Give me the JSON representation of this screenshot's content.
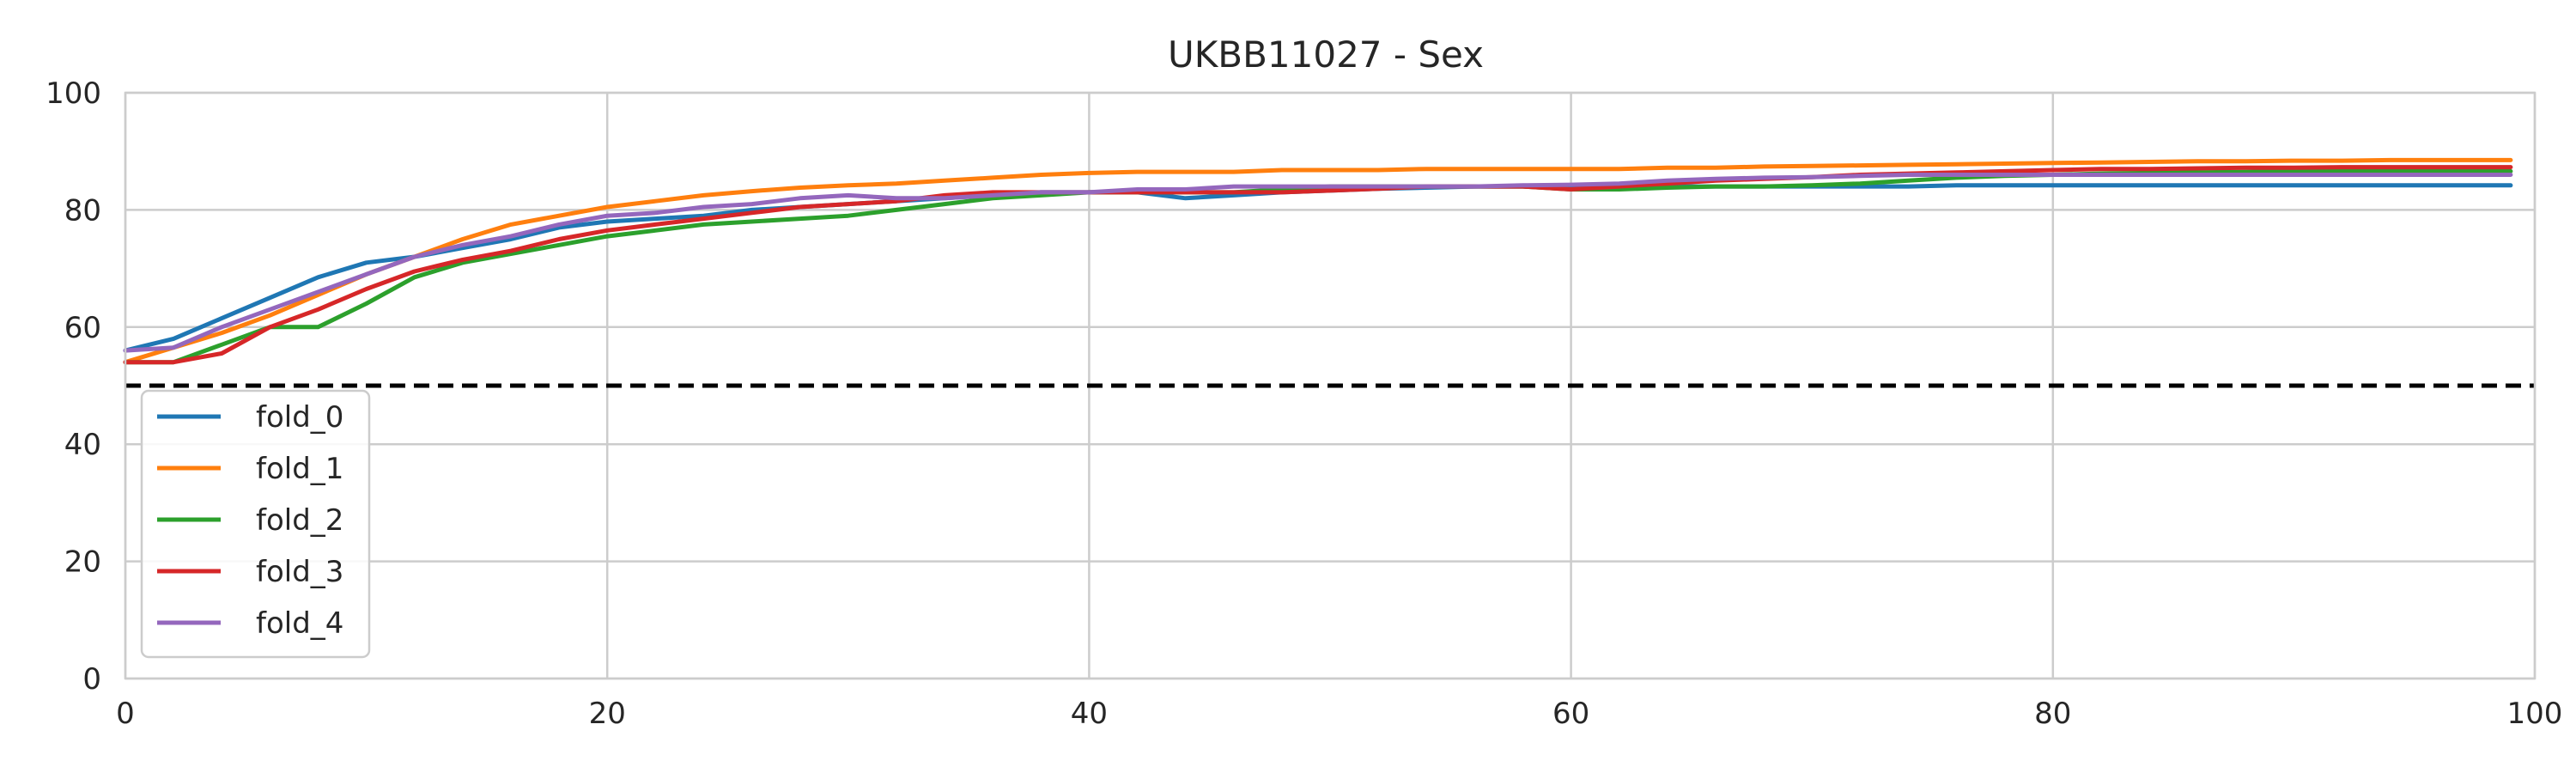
{
  "chart_data": {
    "type": "line",
    "title": "UKBB11027 - Sex",
    "xlabel": "",
    "ylabel": "",
    "xlim": [
      0,
      100
    ],
    "ylim": [
      0,
      100
    ],
    "x_ticks": [
      0,
      20,
      40,
      60,
      80,
      100
    ],
    "y_ticks": [
      0,
      20,
      40,
      60,
      80,
      100
    ],
    "grid": true,
    "legend_position": "lower-left",
    "reference_line": {
      "y": 50,
      "style": "dashed",
      "color": "#000000"
    },
    "x": [
      0,
      2,
      4,
      6,
      8,
      10,
      12,
      14,
      16,
      18,
      20,
      22,
      24,
      26,
      28,
      30,
      32,
      34,
      36,
      38,
      40,
      42,
      44,
      46,
      48,
      50,
      52,
      54,
      56,
      58,
      60,
      62,
      64,
      66,
      68,
      70,
      72,
      74,
      76,
      78,
      80,
      82,
      84,
      86,
      88,
      90,
      92,
      94,
      96,
      98,
      99
    ],
    "series": [
      {
        "name": "fold_0",
        "color": "#1f77b4",
        "values": [
          56,
          58,
          61.5,
          65,
          68.5,
          71,
          72,
          73.5,
          75,
          77,
          78,
          78.5,
          79,
          80,
          80.5,
          81,
          81.5,
          82,
          82.5,
          83,
          83,
          83,
          82,
          82.5,
          83,
          83.3,
          83.6,
          83.8,
          84,
          84,
          84,
          84,
          84,
          84,
          84,
          84,
          84,
          84,
          84.2,
          84.2,
          84.2,
          84.2,
          84.2,
          84.2,
          84.2,
          84.2,
          84.2,
          84.2,
          84.2,
          84.2,
          84.2
        ]
      },
      {
        "name": "fold_1",
        "color": "#ff7f0e",
        "values": [
          54,
          56.5,
          59,
          62,
          65.5,
          69,
          72,
          75,
          77.5,
          79,
          80.5,
          81.5,
          82.5,
          83.2,
          83.8,
          84.2,
          84.5,
          85,
          85.5,
          86,
          86.3,
          86.5,
          86.5,
          86.5,
          86.8,
          86.8,
          86.8,
          87,
          87,
          87,
          87,
          87,
          87.2,
          87.2,
          87.4,
          87.5,
          87.6,
          87.7,
          87.8,
          87.9,
          88,
          88.1,
          88.2,
          88.3,
          88.3,
          88.4,
          88.4,
          88.5,
          88.5,
          88.5,
          88.5
        ]
      },
      {
        "name": "fold_2",
        "color": "#2ca02c",
        "values": [
          54,
          54,
          57,
          60,
          60,
          64,
          68.5,
          71,
          72.5,
          74,
          75.5,
          76.5,
          77.5,
          78,
          78.5,
          79,
          80,
          81,
          82,
          82.5,
          83,
          83,
          83,
          83,
          83.5,
          84,
          84,
          84,
          84,
          84,
          83.5,
          83.5,
          83.8,
          84,
          84,
          84.2,
          84.5,
          85,
          85.5,
          85.8,
          86,
          86.2,
          86.3,
          86.4,
          86.5,
          86.6,
          86.6,
          86.6,
          86.6,
          86.6,
          86.6
        ]
      },
      {
        "name": "fold_3",
        "color": "#d62728",
        "values": [
          54,
          54,
          55.5,
          60,
          63,
          66.5,
          69.5,
          71.5,
          73,
          75,
          76.5,
          77.5,
          78.5,
          79.5,
          80.5,
          81,
          81.5,
          82.5,
          83,
          83,
          83,
          83,
          83,
          83,
          83,
          83.3,
          83.6,
          84,
          84,
          84,
          83.5,
          84,
          84.5,
          85,
          85.3,
          85.6,
          86,
          86.2,
          86.4,
          86.6,
          86.8,
          87,
          87,
          87.1,
          87.2,
          87.2,
          87.3,
          87.3,
          87.3,
          87.3,
          87.3
        ]
      },
      {
        "name": "fold_4",
        "color": "#9467bd",
        "values": [
          56,
          56.5,
          60,
          63,
          66,
          69,
          72,
          74,
          75.5,
          77.5,
          79,
          79.5,
          80.5,
          81,
          82,
          82.5,
          82,
          82,
          82.5,
          83,
          83,
          83.5,
          83.5,
          84,
          84,
          84,
          84,
          84,
          84,
          84.2,
          84.3,
          84.5,
          85,
          85.3,
          85.5,
          85.6,
          85.8,
          86,
          86,
          86,
          86,
          86,
          86,
          86,
          86,
          86,
          86,
          86,
          86,
          86,
          86
        ]
      }
    ]
  }
}
